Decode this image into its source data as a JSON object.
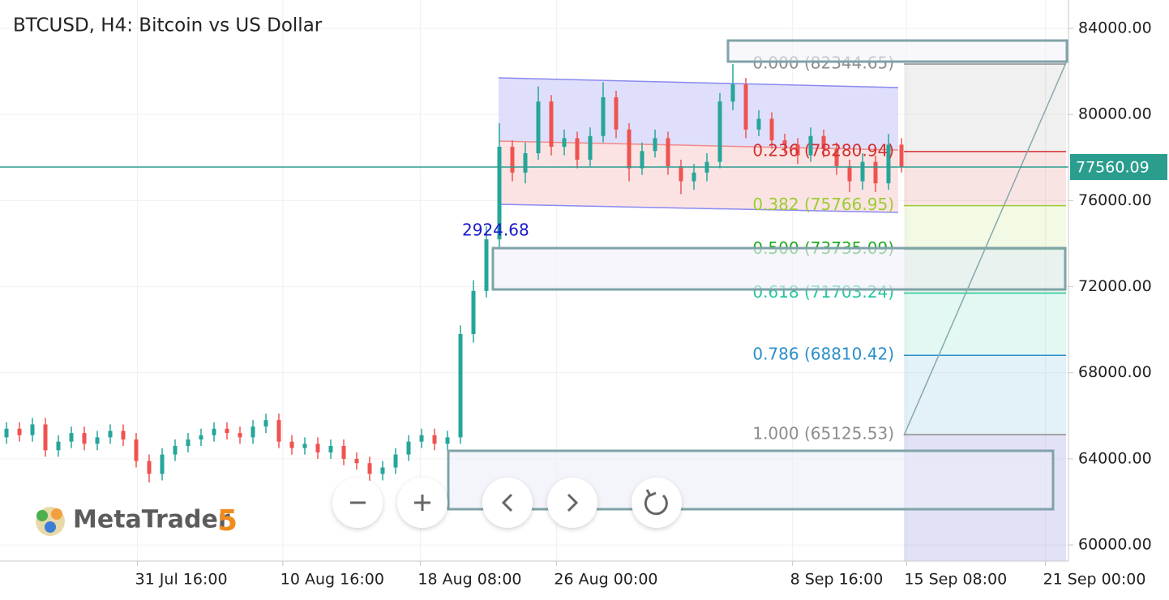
{
  "chart_data": {
    "type": "candlestick",
    "title": "BTCUSD, H4: Bitcoin vs US Dollar",
    "open": [
      65000,
      65400,
      65100,
      65600,
      64400,
      64800,
      65200,
      64700,
      65000,
      65300,
      64900,
      63900,
      63300,
      64200,
      64600,
      64900,
      65100,
      65400,
      65200,
      65000,
      65500,
      65800,
      64800,
      64500,
      64700,
      64300,
      64600,
      64000,
      63800,
      63300,
      63600,
      64200,
      64800,
      65100,
      64700,
      65000,
      69800,
      71800,
      74200,
      78500,
      77300,
      78200,
      80600,
      78500,
      78900,
      77900,
      79000,
      80800,
      79300,
      77500,
      78300,
      78900,
      77600,
      76900,
      77300,
      77800,
      80600,
      81400,
      79300,
      79800,
      78800,
      78600,
      78100,
      79000,
      78400,
      77600,
      76900,
      77800,
      76800,
      78600
    ],
    "high": [
      65700,
      65700,
      65900,
      65900,
      65100,
      65500,
      65500,
      65300,
      65600,
      65600,
      65200,
      64200,
      64500,
      64900,
      65200,
      65400,
      65700,
      65700,
      65500,
      65800,
      66100,
      66100,
      65100,
      65000,
      65000,
      64900,
      64900,
      64300,
      64100,
      63900,
      64500,
      65100,
      65400,
      65400,
      65300,
      70200,
      72300,
      74800,
      79600,
      78800,
      78700,
      81300,
      80900,
      79300,
      79200,
      79400,
      81500,
      81100,
      79600,
      78700,
      79300,
      79200,
      77900,
      77700,
      78200,
      81000,
      82344.65,
      81700,
      80200,
      80100,
      79100,
      78900,
      79400,
      79300,
      78700,
      77900,
      78200,
      78100,
      79100,
      78900
    ],
    "low": [
      64700,
      64800,
      64800,
      64100,
      64100,
      64500,
      64400,
      64400,
      64700,
      64600,
      63600,
      62900,
      63000,
      63900,
      64300,
      64600,
      64800,
      64900,
      64700,
      64700,
      65200,
      64500,
      64200,
      64200,
      64000,
      64000,
      63700,
      63500,
      62900,
      63000,
      63300,
      63900,
      64500,
      64400,
      64400,
      64700,
      69400,
      71500,
      73800,
      76900,
      76800,
      77900,
      78100,
      78100,
      77500,
      77600,
      78700,
      78900,
      76900,
      77200,
      78000,
      77200,
      76300,
      76500,
      76900,
      77500,
      80200,
      78900,
      79000,
      78400,
      78200,
      77700,
      77800,
      78000,
      77200,
      76400,
      76500,
      76400,
      76500,
      77300
    ],
    "close": [
      65400,
      65100,
      65600,
      64400,
      64800,
      65200,
      64700,
      65000,
      65300,
      64900,
      63900,
      63300,
      64200,
      64600,
      64900,
      65100,
      65400,
      65200,
      65000,
      65500,
      65800,
      64800,
      64500,
      64700,
      64300,
      64600,
      64000,
      63800,
      63300,
      63600,
      64200,
      64800,
      65100,
      64700,
      65000,
      69800,
      71800,
      74200,
      78500,
      77300,
      78200,
      80600,
      78500,
      78900,
      77900,
      79000,
      80800,
      79300,
      77500,
      78300,
      78900,
      77600,
      76900,
      77300,
      77800,
      80600,
      81400,
      79300,
      79800,
      78800,
      78600,
      78100,
      79000,
      78400,
      77600,
      76900,
      77800,
      76800,
      78600,
      77560
    ],
    "up_color": "#26a69a",
    "down_color": "#ef5350",
    "xlim": [
      -0.5,
      81.875
    ],
    "xticks": [
      {
        "value": 10.1,
        "label": "31 Jul 16:00"
      },
      {
        "value": 21.3,
        "label": "10 Aug 16:00"
      },
      {
        "value": 31.9,
        "label": "18 Aug 08:00"
      },
      {
        "value": 42.4,
        "label": "26 Aug 00:00"
      },
      {
        "value": 60.6,
        "label": "8 Sep 16:00"
      },
      {
        "value": 69.4,
        "label": "15 Sep 08:00"
      },
      {
        "value": 80.1,
        "label": "21 Sep 00:00"
      }
    ],
    "ylim": [
      59250,
      85320
    ],
    "yticks": [
      {
        "value": 60000,
        "label": "60000.00"
      },
      {
        "value": 64000,
        "label": "64000.00"
      },
      {
        "value": 68000,
        "label": "68000.00"
      },
      {
        "value": 72000,
        "label": "72000.00"
      },
      {
        "value": 76000,
        "label": "76000.00"
      },
      {
        "value": 80000,
        "label": "80000.00"
      },
      {
        "value": 84000,
        "label": "84000.00"
      }
    ],
    "grid": true,
    "last_price": {
      "value": 77560.09,
      "label": "77560.09",
      "color": "#2a9d8f"
    },
    "fibonacci": [
      {
        "value": 82344.65,
        "label": "0.000 (82344.65)",
        "color": "#8c8c8c"
      },
      {
        "value": 78280.94,
        "label": "0.236 (78280.94)",
        "color": "#d32f2f"
      },
      {
        "value": 75766.95,
        "label": "0.382 (75766.95)",
        "color": "#9acd32"
      },
      {
        "value": 73735.09,
        "label": "0.500 (73735.09)",
        "color": "#22aa22"
      },
      {
        "value": 71703.24,
        "label": "0.618 (71703.24)",
        "color": "#26c6a0"
      },
      {
        "value": 68810.42,
        "label": "0.786 (68810.42)",
        "color": "#2a8fc8"
      },
      {
        "value": 65125.53,
        "label": "1.000 (65125.53)",
        "color": "#8c8c8c"
      }
    ],
    "annotation": "2924.68"
  },
  "logo": {
    "name": "MetaTrader",
    "version": "5"
  }
}
